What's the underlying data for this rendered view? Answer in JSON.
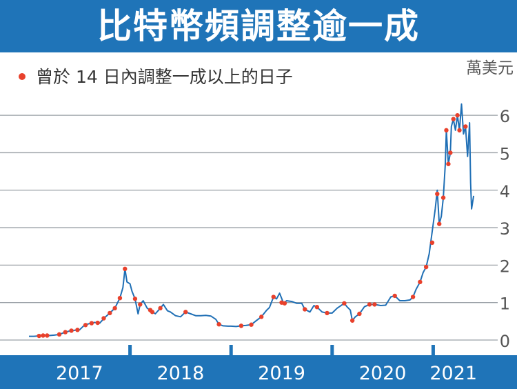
{
  "title": "比特幣頻調整逾一成",
  "colors": {
    "title_bg": "#1f74b8",
    "title_text": "#ffffff",
    "line": "#1f6fb5",
    "marker": "#e8412c",
    "grid": "#9aa0a6",
    "axis_bar": "#1f74b8",
    "text": "#333333",
    "tick_text": "#555555"
  },
  "chart_data": {
    "type": "line",
    "title": "比特幣頻調整逾一成",
    "xlabel": "",
    "ylabel": "萬美元",
    "unit": "萬美元",
    "legend": {
      "marker_label": "曾於 14 日內調整一成以上的日子",
      "placement": "top-left"
    },
    "grid": "horizontal",
    "xlim": [
      2017.0,
      2021.42
    ],
    "ylim": [
      0,
      6.5
    ],
    "y_ticks": [
      0,
      1,
      2,
      3,
      4,
      5,
      6
    ],
    "year_labels": [
      {
        "label": "2017",
        "x": 2017.5
      },
      {
        "label": "2018",
        "x": 2018.5
      },
      {
        "label": "2019",
        "x": 2019.5
      },
      {
        "label": "2020",
        "x": 2020.5
      },
      {
        "label": "2021",
        "x": 2021.2
      }
    ],
    "year_boundaries": [
      2018.0,
      2019.0,
      2020.0,
      2021.0
    ],
    "series": [
      {
        "points": [
          [
            2017.0,
            0.1
          ],
          [
            2017.05,
            0.1
          ],
          [
            2017.1,
            0.11
          ],
          [
            2017.15,
            0.12
          ],
          [
            2017.2,
            0.12
          ],
          [
            2017.25,
            0.13
          ],
          [
            2017.3,
            0.15
          ],
          [
            2017.35,
            0.2
          ],
          [
            2017.4,
            0.24
          ],
          [
            2017.45,
            0.26
          ],
          [
            2017.5,
            0.27
          ],
          [
            2017.55,
            0.4
          ],
          [
            2017.6,
            0.44
          ],
          [
            2017.65,
            0.47
          ],
          [
            2017.7,
            0.45
          ],
          [
            2017.75,
            0.6
          ],
          [
            2017.8,
            0.72
          ],
          [
            2017.85,
            0.85
          ],
          [
            2017.9,
            1.12
          ],
          [
            2017.93,
            1.4
          ],
          [
            2017.95,
            1.9
          ],
          [
            2017.97,
            1.55
          ],
          [
            2018.0,
            1.5
          ],
          [
            2018.02,
            1.3
          ],
          [
            2018.05,
            1.1
          ],
          [
            2018.08,
            0.7
          ],
          [
            2018.1,
            0.95
          ],
          [
            2018.13,
            1.05
          ],
          [
            2018.17,
            0.85
          ],
          [
            2018.2,
            0.8
          ],
          [
            2018.25,
            0.7
          ],
          [
            2018.3,
            0.85
          ],
          [
            2018.33,
            0.95
          ],
          [
            2018.37,
            0.78
          ],
          [
            2018.4,
            0.75
          ],
          [
            2018.45,
            0.65
          ],
          [
            2018.5,
            0.62
          ],
          [
            2018.55,
            0.75
          ],
          [
            2018.6,
            0.7
          ],
          [
            2018.65,
            0.65
          ],
          [
            2018.7,
            0.65
          ],
          [
            2018.75,
            0.66
          ],
          [
            2018.8,
            0.64
          ],
          [
            2018.85,
            0.55
          ],
          [
            2018.88,
            0.42
          ],
          [
            2018.92,
            0.38
          ],
          [
            2018.97,
            0.37
          ],
          [
            2019.0,
            0.37
          ],
          [
            2019.05,
            0.36
          ],
          [
            2019.1,
            0.38
          ],
          [
            2019.15,
            0.39
          ],
          [
            2019.2,
            0.41
          ],
          [
            2019.25,
            0.52
          ],
          [
            2019.3,
            0.62
          ],
          [
            2019.35,
            0.79
          ],
          [
            2019.38,
            0.87
          ],
          [
            2019.42,
            1.15
          ],
          [
            2019.45,
            1.1
          ],
          [
            2019.48,
            1.25
          ],
          [
            2019.52,
            0.98
          ],
          [
            2019.55,
            1.05
          ],
          [
            2019.6,
            1.03
          ],
          [
            2019.65,
            0.98
          ],
          [
            2019.7,
            0.98
          ],
          [
            2019.73,
            0.82
          ],
          [
            2019.78,
            0.75
          ],
          [
            2019.82,
            0.92
          ],
          [
            2019.85,
            0.88
          ],
          [
            2019.9,
            0.75
          ],
          [
            2019.95,
            0.72
          ],
          [
            2020.0,
            0.72
          ],
          [
            2020.05,
            0.85
          ],
          [
            2020.12,
            0.98
          ],
          [
            2020.15,
            0.88
          ],
          [
            2020.18,
            0.8
          ],
          [
            2020.2,
            0.52
          ],
          [
            2020.23,
            0.62
          ],
          [
            2020.27,
            0.7
          ],
          [
            2020.32,
            0.89
          ],
          [
            2020.37,
            0.95
          ],
          [
            2020.42,
            0.95
          ],
          [
            2020.48,
            0.92
          ],
          [
            2020.53,
            0.93
          ],
          [
            2020.58,
            1.15
          ],
          [
            2020.62,
            1.18
          ],
          [
            2020.67,
            1.05
          ],
          [
            2020.72,
            1.05
          ],
          [
            2020.77,
            1.07
          ],
          [
            2020.8,
            1.15
          ],
          [
            2020.83,
            1.35
          ],
          [
            2020.87,
            1.55
          ],
          [
            2020.9,
            1.8
          ],
          [
            2020.93,
            1.95
          ],
          [
            2020.96,
            2.3
          ],
          [
            2020.99,
            2.9
          ],
          [
            2021.02,
            3.5
          ],
          [
            2021.04,
            4.0
          ],
          [
            2021.06,
            3.1
          ],
          [
            2021.08,
            3.3
          ],
          [
            2021.1,
            3.8
          ],
          [
            2021.12,
            4.7
          ],
          [
            2021.13,
            5.6
          ],
          [
            2021.15,
            4.7
          ],
          [
            2021.17,
            5.0
          ],
          [
            2021.18,
            5.7
          ],
          [
            2021.2,
            5.9
          ],
          [
            2021.22,
            5.6
          ],
          [
            2021.24,
            6.0
          ],
          [
            2021.26,
            5.6
          ],
          [
            2021.28,
            6.3
          ],
          [
            2021.3,
            5.5
          ],
          [
            2021.32,
            5.7
          ],
          [
            2021.34,
            4.9
          ],
          [
            2021.36,
            5.8
          ],
          [
            2021.37,
            4.2
          ],
          [
            2021.38,
            3.5
          ],
          [
            2021.4,
            3.85
          ]
        ]
      }
    ],
    "marked_points": [
      [
        2017.1,
        0.11
      ],
      [
        2017.14,
        0.12
      ],
      [
        2017.18,
        0.12
      ],
      [
        2017.3,
        0.15
      ],
      [
        2017.36,
        0.21
      ],
      [
        2017.42,
        0.25
      ],
      [
        2017.48,
        0.27
      ],
      [
        2017.56,
        0.4
      ],
      [
        2017.62,
        0.45
      ],
      [
        2017.68,
        0.46
      ],
      [
        2017.74,
        0.58
      ],
      [
        2017.8,
        0.72
      ],
      [
        2017.85,
        0.85
      ],
      [
        2017.9,
        1.12
      ],
      [
        2017.95,
        1.9
      ],
      [
        2018.05,
        1.1
      ],
      [
        2018.1,
        0.95
      ],
      [
        2018.2,
        0.8
      ],
      [
        2018.22,
        0.75
      ],
      [
        2018.3,
        0.85
      ],
      [
        2018.55,
        0.75
      ],
      [
        2018.88,
        0.42
      ],
      [
        2019.1,
        0.38
      ],
      [
        2019.2,
        0.41
      ],
      [
        2019.3,
        0.62
      ],
      [
        2019.42,
        1.15
      ],
      [
        2019.5,
        1.0
      ],
      [
        2019.53,
        0.98
      ],
      [
        2019.73,
        0.82
      ],
      [
        2019.85,
        0.88
      ],
      [
        2019.95,
        0.72
      ],
      [
        2020.12,
        0.98
      ],
      [
        2020.2,
        0.52
      ],
      [
        2020.27,
        0.7
      ],
      [
        2020.37,
        0.95
      ],
      [
        2020.42,
        0.95
      ],
      [
        2020.62,
        1.18
      ],
      [
        2020.8,
        1.15
      ],
      [
        2020.87,
        1.55
      ],
      [
        2020.93,
        1.95
      ],
      [
        2020.99,
        2.6
      ],
      [
        2021.04,
        3.9
      ],
      [
        2021.06,
        3.1
      ],
      [
        2021.1,
        3.8
      ],
      [
        2021.13,
        5.6
      ],
      [
        2021.15,
        4.7
      ],
      [
        2021.17,
        5.0
      ],
      [
        2021.2,
        5.9
      ],
      [
        2021.24,
        6.0
      ],
      [
        2021.26,
        5.6
      ],
      [
        2021.32,
        5.7
      ]
    ]
  }
}
